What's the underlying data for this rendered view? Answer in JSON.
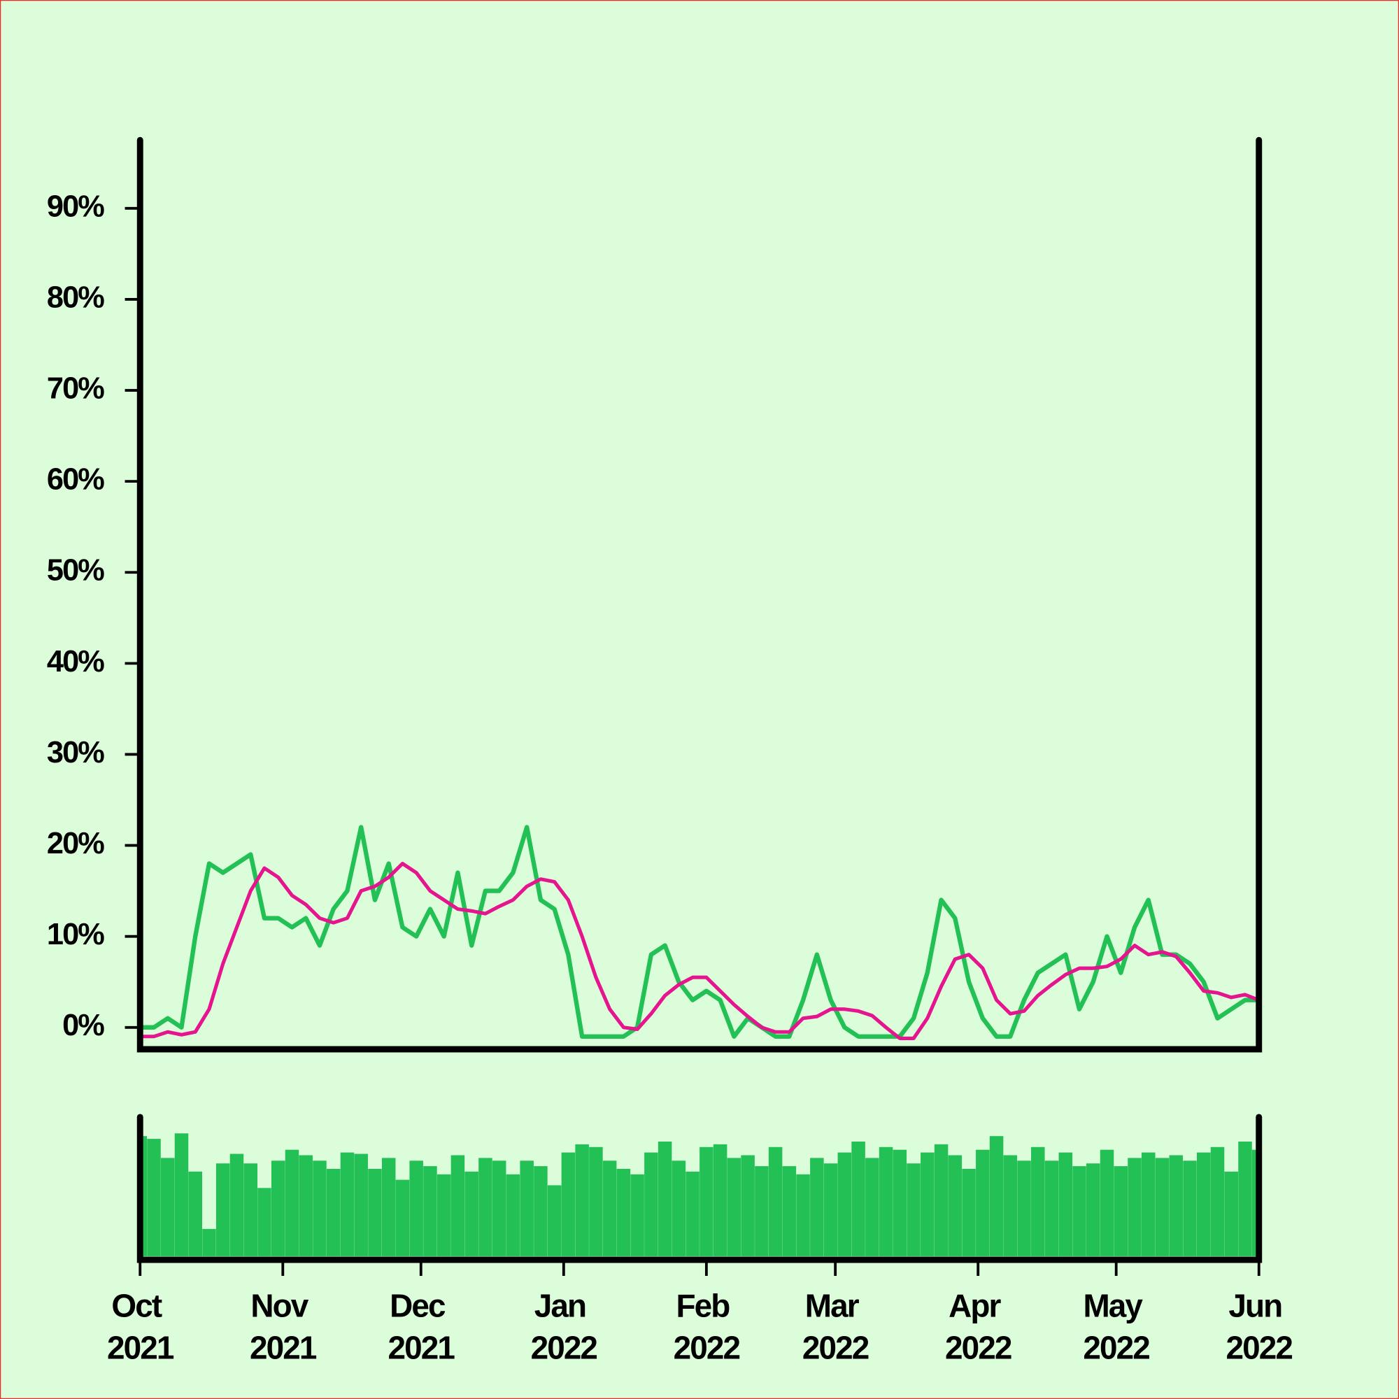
{
  "chart_data": {
    "type": "line",
    "x": [
      0,
      3,
      6,
      9,
      12,
      15,
      18,
      21,
      24,
      27,
      30,
      33,
      36,
      39,
      42,
      45,
      48,
      51,
      54,
      57,
      60,
      63,
      66,
      69,
      72,
      75,
      78,
      81,
      84,
      87,
      90,
      93,
      96,
      99,
      102,
      105,
      108,
      111,
      114,
      117,
      120,
      123,
      126,
      129,
      132,
      135,
      138,
      141,
      144,
      147,
      150,
      153,
      156,
      159,
      162,
      165,
      168,
      171,
      174,
      177,
      180,
      183,
      186,
      189,
      192,
      195,
      198,
      201,
      204,
      207,
      210,
      213,
      216,
      219,
      222,
      225,
      228,
      231,
      234,
      237,
      240,
      243
    ],
    "xlim": [
      0,
      243
    ],
    "xticks": [
      {
        "value": 0,
        "label": "Oct 2021"
      },
      {
        "value": 31,
        "label": "Nov 2021"
      },
      {
        "value": 61,
        "label": "Dec 2021"
      },
      {
        "value": 92,
        "label": "Jan 2022"
      },
      {
        "value": 123,
        "label": "Feb 2022"
      },
      {
        "value": 151,
        "label": "Mar 2022"
      },
      {
        "value": 182,
        "label": "Apr 2022"
      },
      {
        "value": 212,
        "label": "May 2022"
      },
      {
        "value": 243,
        "label": "Jun 2022"
      }
    ],
    "ylim": [
      -2.4,
      97.5
    ],
    "yticks": [
      {
        "value": 0,
        "label": "0%"
      },
      {
        "value": 10,
        "label": "10%"
      },
      {
        "value": 20,
        "label": "20%"
      },
      {
        "value": 30,
        "label": "30%"
      },
      {
        "value": 40,
        "label": "40%"
      },
      {
        "value": 50,
        "label": "50%"
      },
      {
        "value": 60,
        "label": "60%"
      },
      {
        "value": 70,
        "label": "70%"
      },
      {
        "value": 80,
        "label": "80%"
      },
      {
        "value": 90,
        "label": "90%"
      }
    ],
    "y2lim": [
      0,
      100
    ],
    "series": [
      {
        "color": "#22c055",
        "values": [
          0,
          0,
          1,
          0,
          10,
          18,
          17,
          18,
          19,
          12,
          12,
          11,
          12,
          9,
          13,
          15,
          22,
          14,
          18,
          11,
          10,
          13,
          10,
          17,
          9,
          15,
          15,
          17,
          22,
          14,
          13,
          8,
          -1,
          -1,
          -1,
          -1,
          0,
          8,
          9,
          5,
          3,
          4,
          3,
          -1,
          1,
          0,
          -1,
          -1,
          3,
          8,
          3,
          0,
          -1,
          -1,
          -1,
          -1,
          1,
          6,
          14,
          12,
          5,
          1,
          -1,
          -1,
          3,
          6,
          7,
          8,
          2,
          5,
          10,
          6,
          11,
          14,
          8,
          8,
          7,
          5,
          1,
          2,
          3,
          3
        ]
      },
      {
        "color": "#e5158f",
        "values": [
          -1,
          -1,
          -0.5,
          -0.8,
          -0.5,
          2,
          7,
          11,
          15,
          17.5,
          16.5,
          14.5,
          13.5,
          12,
          11.5,
          12,
          15,
          15.5,
          16.5,
          18,
          17,
          15,
          14,
          13,
          12.8,
          12.5,
          13.3,
          14,
          15.5,
          16.3,
          16,
          14,
          10,
          5.5,
          2,
          0,
          -0.2,
          1.5,
          3.5,
          4.7,
          5.5,
          5.5,
          4,
          2.5,
          1.2,
          0,
          -0.5,
          -0.5,
          1,
          1.2,
          2,
          2,
          1.8,
          1.3,
          0,
          -1.2,
          -1.2,
          1,
          4.5,
          7.5,
          8,
          6.5,
          3,
          1.5,
          1.8,
          3.5,
          4.7,
          5.8,
          6.5,
          6.5,
          6.7,
          7.5,
          9,
          8,
          8.3,
          7.8,
          6,
          4,
          3.8,
          3.3,
          3.6,
          3
        ]
      },
      {
        "color": "#22c055",
        "axis": "y2",
        "values": [
          88,
          86,
          72,
          90,
          62,
          20,
          68,
          75,
          68,
          50,
          70,
          78,
          74,
          70,
          64,
          76,
          75,
          64,
          72,
          56,
          70,
          66,
          60,
          74,
          62,
          72,
          70,
          60,
          70,
          66,
          52,
          76,
          82,
          80,
          70,
          64,
          60,
          76,
          84,
          70,
          62,
          80,
          82,
          72,
          74,
          66,
          80,
          66,
          60,
          72,
          68,
          76,
          84,
          72,
          80,
          78,
          68,
          76,
          82,
          74,
          64,
          78,
          88,
          74,
          70,
          80,
          70,
          76,
          66,
          68,
          78,
          66,
          72,
          76,
          72,
          74,
          70,
          76,
          80,
          62,
          84,
          78
        ]
      }
    ]
  }
}
